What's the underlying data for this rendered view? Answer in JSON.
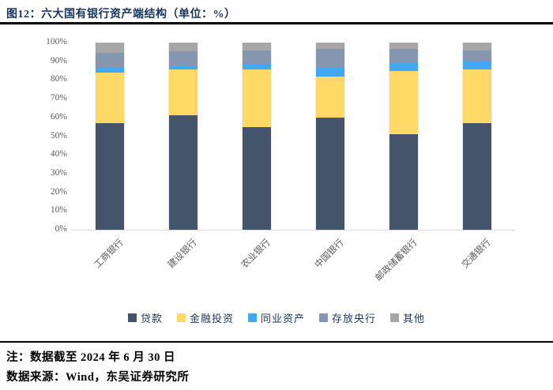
{
  "header": {
    "title": "图12：六大国有银行资产端结构（单位：%）"
  },
  "chart_data": {
    "type": "bar",
    "stacked": true,
    "title": "六大国有银行资产端结构",
    "unit": "%",
    "categories": [
      "工商银行",
      "建设银行",
      "农业银行",
      "中国银行",
      "邮政储蓄银行",
      "交通银行"
    ],
    "series": [
      {
        "name": "贷款",
        "color": "#44546A",
        "values": [
          57,
          61,
          55,
          60,
          51,
          57
        ]
      },
      {
        "name": "金融投资",
        "color": "#FFD966",
        "values": [
          27,
          24.5,
          30.5,
          22,
          34,
          28.5
        ]
      },
      {
        "name": "同业资产",
        "color": "#41A9F1",
        "values": [
          2.5,
          2,
          3,
          5,
          4,
          5
        ]
      },
      {
        "name": "存放央行",
        "color": "#8496B0",
        "values": [
          8,
          8,
          7.5,
          9.5,
          7.5,
          5.5
        ]
      },
      {
        "name": "其他",
        "color": "#A6A6A6",
        "values": [
          5.5,
          4.5,
          4,
          3.5,
          3.5,
          4
        ]
      }
    ],
    "y_ticks": [
      "0%",
      "10%",
      "20%",
      "30%",
      "40%",
      "50%",
      "60%",
      "70%",
      "80%",
      "90%",
      "100%"
    ],
    "ylim": [
      0,
      100
    ],
    "grid": false,
    "legend_position": "bottom"
  },
  "footer": {
    "note": "注：数据截至 2024 年 6 月 30 日",
    "source": "数据来源：Wind，东吴证券研究所"
  },
  "colors": {
    "title_text": "#17365D",
    "legend_text": "#1F3864",
    "axis_text": "#595959",
    "axis_line": "#D9D9D9",
    "rule": "#000000"
  }
}
